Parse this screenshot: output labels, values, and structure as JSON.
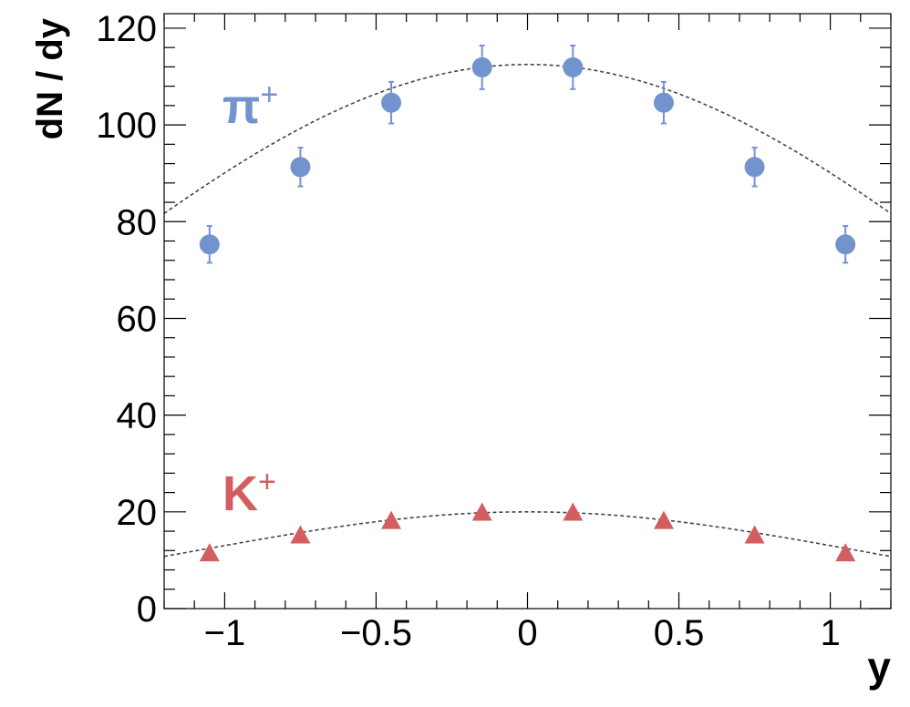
{
  "chart_data": {
    "type": "scatter",
    "title": "",
    "xlabel": "y",
    "ylabel": "dN / dy",
    "xlim": [
      -1.2,
      1.2
    ],
    "ylim": [
      0,
      123
    ],
    "grid": false,
    "x_ticks": [
      -1,
      -0.5,
      0,
      0.5,
      1
    ],
    "x_tick_labels": [
      "−1",
      "−0.5",
      "0",
      "0.5",
      "1"
    ],
    "y_ticks": [
      0,
      20,
      40,
      60,
      80,
      100,
      120
    ],
    "y_tick_labels": [
      "0",
      "20",
      "40",
      "60",
      "80",
      "100",
      "120"
    ],
    "series": [
      {
        "name": "π",
        "charge": "+",
        "marker": "circle",
        "color": "#7393CF",
        "x": [
          -1.05,
          -0.75,
          -0.45,
          -0.15,
          0.15,
          0.45,
          0.75,
          1.05
        ],
        "y": [
          75.3,
          91.3,
          104.6,
          111.9,
          111.9,
          104.6,
          91.3,
          75.3
        ],
        "yerr": [
          3.8,
          4.0,
          4.3,
          4.5,
          4.5,
          4.3,
          4.0,
          3.8
        ],
        "fit": {
          "style": "dashed",
          "color": "#444444",
          "peak": 112.5,
          "sigma": 1.5
        }
      },
      {
        "name": "K",
        "charge": "+",
        "marker": "triangle",
        "color": "#D35E60",
        "x": [
          -1.05,
          -0.75,
          -0.45,
          -0.15,
          0.15,
          0.45,
          0.75,
          1.05
        ],
        "y": [
          11.2,
          14.9,
          17.9,
          19.6,
          19.6,
          17.9,
          14.9,
          11.2
        ],
        "yerr": [
          0,
          0,
          0,
          0,
          0,
          0,
          0,
          0
        ],
        "fit": {
          "style": "dashed",
          "color": "#444444",
          "peak": 20.0,
          "sigma": 1.08
        }
      }
    ]
  }
}
